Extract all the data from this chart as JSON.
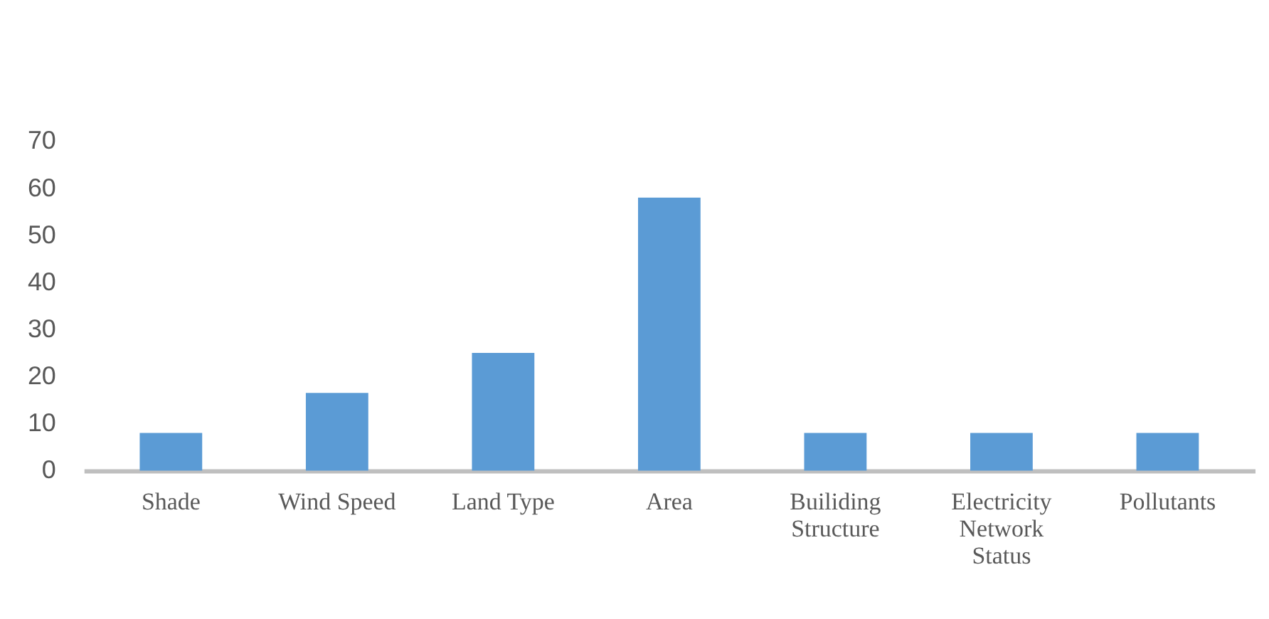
{
  "chart_data": {
    "type": "bar",
    "categories": [
      "Shade",
      "Wind Speed",
      "Land Type",
      "Area",
      "Builiding Structure",
      "Electricity Network Status",
      "Pollutants"
    ],
    "values": [
      8,
      16.5,
      25,
      58,
      8,
      8,
      8
    ],
    "color": "#5b9bd5",
    "ylim": [
      0,
      70
    ],
    "yticks": [
      0,
      10,
      20,
      30,
      40,
      50,
      60,
      70
    ],
    "grid": false
  }
}
